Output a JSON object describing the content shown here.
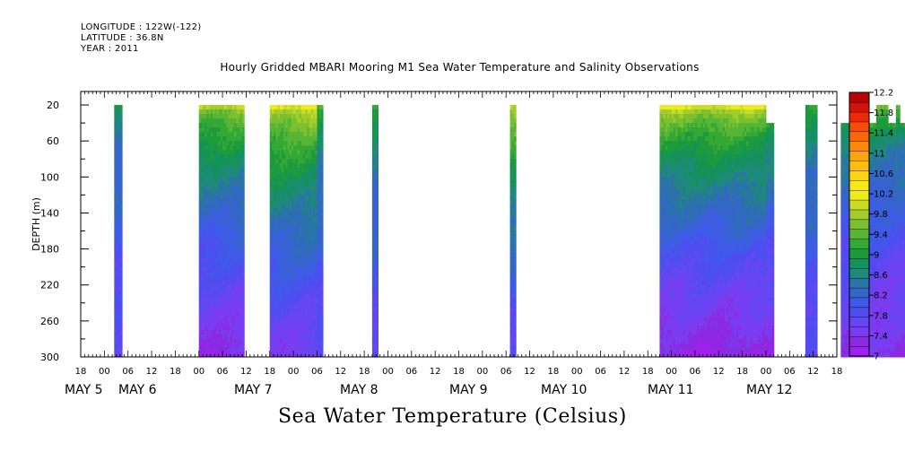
{
  "header": {
    "longitude": "LONGITUDE : 122W(-122)",
    "latitude": "LATITUDE : 36.8N",
    "year": "YEAR : 2011"
  },
  "chart_data": {
    "type": "heatmap",
    "title": "Hourly Gridded MBARI Mooring M1 Sea Water Temperature and Salinity Observations",
    "ylabel": "DEPTH (m)",
    "xlabel": "Sea Water Temperature (Celsius)",
    "ylim": [
      300,
      5
    ],
    "y_ticks": [
      20,
      60,
      100,
      140,
      180,
      220,
      260,
      300
    ],
    "x_hour_ticks": [
      "18",
      "00",
      "06",
      "12",
      "18",
      "00",
      "06",
      "12",
      "18",
      "00",
      "06",
      "12",
      "18",
      "00",
      "06",
      "12",
      "18",
      "00",
      "06",
      "12",
      "18",
      "00",
      "06",
      "12",
      "18",
      "00",
      "06",
      "12",
      "18",
      "00",
      "06",
      "12",
      "18"
    ],
    "x_day_labels": [
      "MAY  5",
      "MAY  6",
      "MAY  7",
      "MAY  8",
      "MAY  9",
      "MAY 10",
      "MAY 11",
      "MAY 12"
    ],
    "time_range_hours": [
      -6,
      186
    ],
    "colorbar": {
      "levels": [
        7,
        7.2,
        7.4,
        7.6,
        7.8,
        8,
        8.2,
        8.4,
        8.6,
        8.8,
        9,
        9.2,
        9.4,
        9.6,
        9.8,
        10,
        10.2,
        10.4,
        10.6,
        10.8,
        11,
        11.2,
        11.4,
        11.6,
        11.8,
        12,
        12.2
      ],
      "tick_labels": [
        "7",
        "7.4",
        "7.8",
        "8.2",
        "8.6",
        "9",
        "9.4",
        "9.8",
        "10.2",
        "10.6",
        "11",
        "11.4",
        "11.8",
        "12.2"
      ],
      "colors": [
        "#a020f0",
        "#8a2be2",
        "#7a3cf0",
        "#6646f2",
        "#4f4cf0",
        "#3f5ae8",
        "#3466c8",
        "#2a74a8",
        "#1e8a7a",
        "#14925a",
        "#1e9a3c",
        "#34a834",
        "#58b434",
        "#7cc030",
        "#a2cc2c",
        "#c8dc24",
        "#ecec1a",
        "#f8e81a",
        "#fcd414",
        "#fcbc10",
        "#fca40c",
        "#fc880a",
        "#fc6808",
        "#f84a08",
        "#ec2a08",
        "#d41208",
        "#b40404"
      ]
    },
    "segments": [
      {
        "start": 2.5,
        "end": 4.5,
        "surface_depth": 20,
        "surface_temp": 8.9,
        "deep_temp": 7.7
      },
      {
        "start": 24,
        "end": 35.5,
        "surface_depth": 20,
        "surface_temp": 10.0,
        "deep_temp": 7.3
      },
      {
        "start": 42,
        "end": 54,
        "surface_depth": 20,
        "surface_temp": 10.3,
        "deep_temp": 7.5
      },
      {
        "start": 54,
        "end": 55.5,
        "surface_depth": 20,
        "surface_temp": 9.3,
        "deep_temp": 7.7
      },
      {
        "start": 68,
        "end": 69.5,
        "surface_depth": 20,
        "surface_temp": 9.3,
        "deep_temp": 7.7
      },
      {
        "start": 103,
        "end": 104.5,
        "surface_depth": 20,
        "surface_temp": 10.1,
        "deep_temp": 7.7
      },
      {
        "start": 141,
        "end": 168,
        "surface_depth": 20,
        "surface_temp": 10.2,
        "deep_temp": 7.2
      },
      {
        "start": 168,
        "end": 170,
        "surface_depth": 40,
        "surface_temp": 9.4,
        "deep_temp": 7.3
      },
      {
        "start": 178,
        "end": 181,
        "surface_depth": 20,
        "surface_temp": 9.2,
        "deep_temp": 7.7
      },
      {
        "start": 187,
        "end": 196,
        "surface_depth": 40,
        "surface_temp": 9.2,
        "deep_temp": 7.4
      },
      {
        "start": 196,
        "end": 199,
        "surface_depth": 20,
        "surface_temp": 9.5,
        "deep_temp": 7.3
      },
      {
        "start": 199,
        "end": 201,
        "surface_depth": 40,
        "surface_temp": 9.2,
        "deep_temp": 7.3
      },
      {
        "start": 201,
        "end": 202,
        "surface_depth": 20,
        "surface_temp": 9.5,
        "deep_temp": 7.3
      },
      {
        "start": 202,
        "end": 204,
        "surface_depth": 40,
        "surface_temp": 9.2,
        "deep_temp": 7.3
      },
      {
        "start": 209,
        "end": 215,
        "surface_depth": 20,
        "surface_temp": 9.6,
        "deep_temp": 7.4
      },
      {
        "start": 215,
        "end": 220,
        "surface_depth": 40,
        "surface_temp": 9.2,
        "deep_temp": 7.4
      }
    ],
    "grid": false
  }
}
